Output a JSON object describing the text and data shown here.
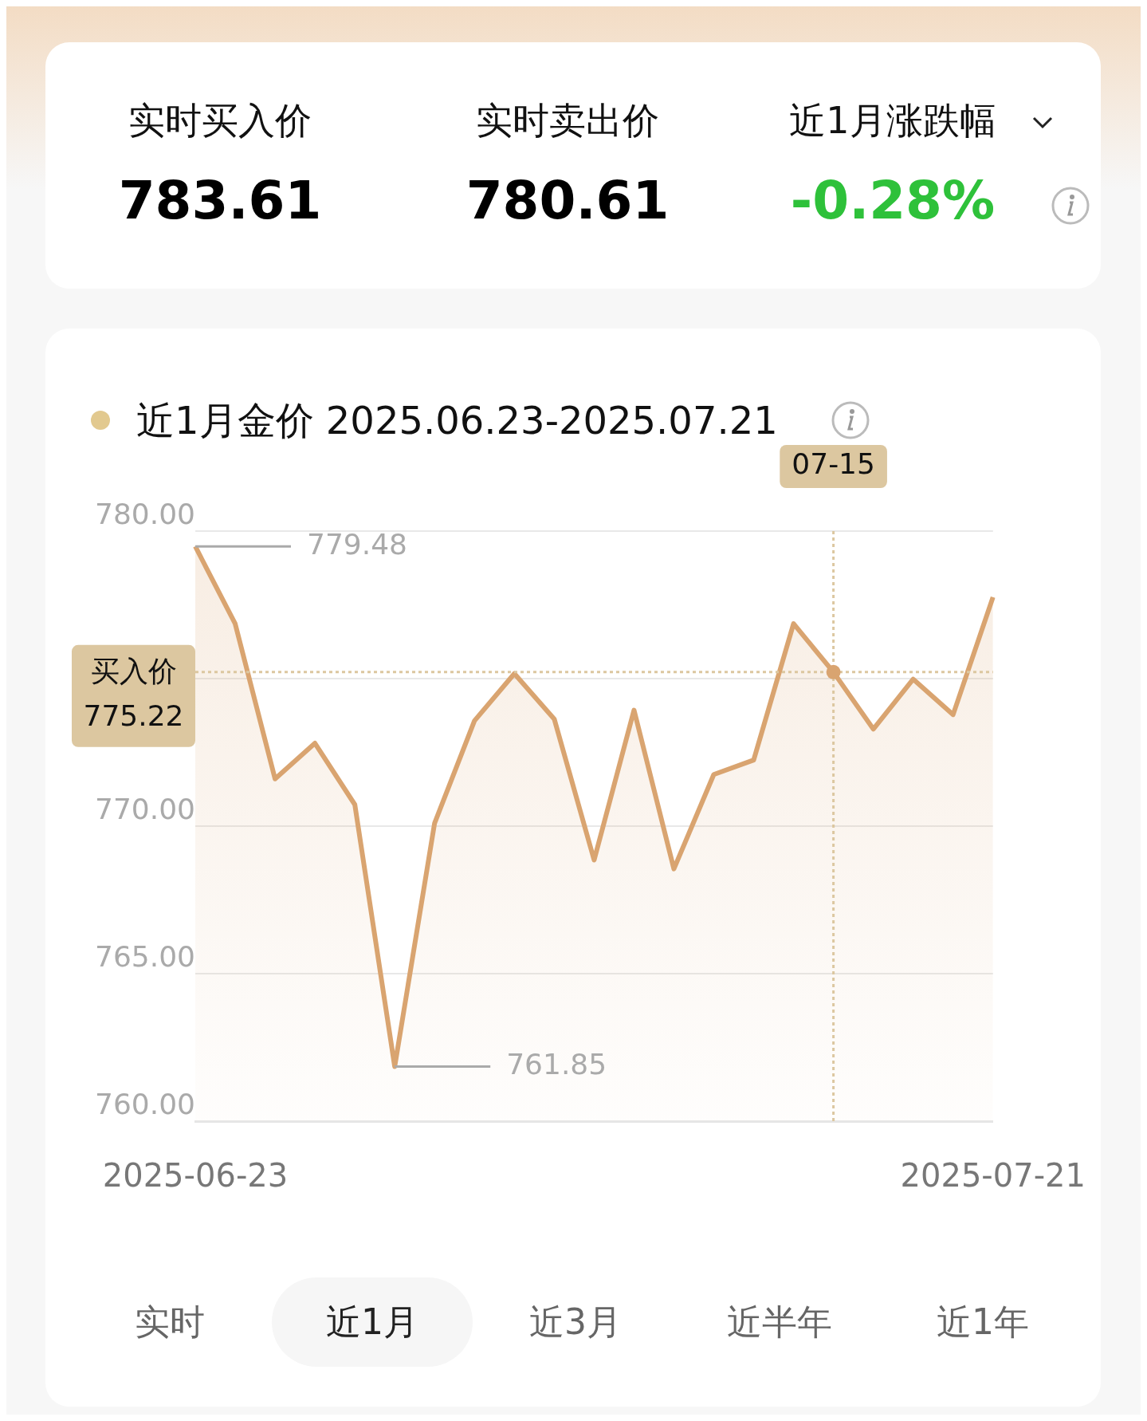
{
  "chart_data": [
    {
      "type": "other",
      "annotations": [
        "实时买入价",
        "783.61",
        "实时卖出价",
        "780.61",
        "近1月涨跌幅",
        "-0.28%"
      ],
      "colors": [
        "#000000",
        "#000000",
        "#2ec13a"
      ]
    },
    {
      "type": "area",
      "title": "近1月金价 2025.06.23-2025.07.21",
      "categories": [
        "2025-06-23",
        null,
        null,
        null,
        null,
        null,
        null,
        null,
        null,
        null,
        null,
        null,
        null,
        null,
        null,
        null,
        "07-15",
        null,
        null,
        null,
        "2025-07-21"
      ],
      "series": [
        {
          "color": "#d9a470",
          "values": [
            779.48,
            776.86,
            771.6,
            772.81,
            770.73,
            761.85,
            770.1,
            773.57,
            775.17,
            773.63,
            768.85,
            773.93,
            768.55,
            771.75,
            772.24,
            776.86,
            775.22,
            773.29,
            774.98,
            773.78,
            777.76
          ]
        }
      ],
      "ylim": [
        760,
        780
      ],
      "yticks": [
        {
          "value": 760,
          "label": "760.00"
        },
        {
          "value": 765,
          "label": "765.00"
        },
        {
          "value": 770,
          "label": "770.00"
        },
        {
          "value": 775,
          "label": null
        },
        {
          "value": 780,
          "label": "780.00"
        }
      ],
      "grid": "y",
      "legend": false,
      "marker": "none",
      "ref_lines": [
        {
          "axis": "y",
          "value": 775.22,
          "label": "买入价\n775.22",
          "color": "#dcc7a0",
          "line_style": "dotted"
        },
        {
          "axis": "x",
          "value": "07-15",
          "color": "#dcc7a0",
          "line_style": "dotted"
        }
      ],
      "annotations": [
        "779.48",
        "761.85"
      ]
    },
    {
      "type": "other",
      "categories": [
        "实时",
        "近1月",
        "近3月",
        "近半年",
        "近1年"
      ],
      "colors": [
        "#ffffff",
        "#f6f6f6",
        "#ffffff",
        "#ffffff",
        "#ffffff"
      ]
    }
  ]
}
